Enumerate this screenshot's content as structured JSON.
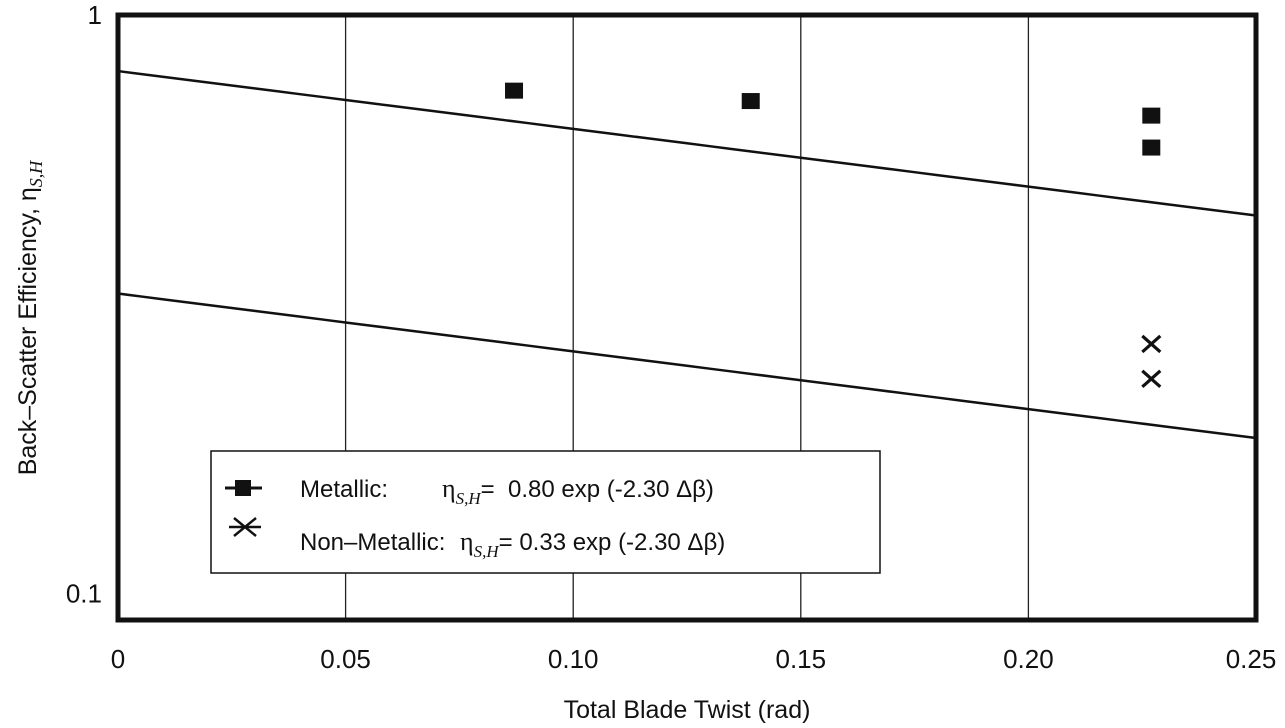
{
  "chart_data": {
    "type": "scatter",
    "xlabel": "Total Blade Twist (rad)",
    "ylabel": "Back–Scatter Efficiency, η",
    "ylabel_sub": "S,H",
    "xlim": [
      0,
      0.25
    ],
    "ylim": [
      0.09,
      1
    ],
    "y_scale": "log",
    "grid": true,
    "x_ticks": [
      {
        "value": 0,
        "label": "0"
      },
      {
        "value": 0.05,
        "label": "0.05"
      },
      {
        "value": 0.1,
        "label": "0.10"
      },
      {
        "value": 0.15,
        "label": "0.15"
      },
      {
        "value": 0.2,
        "label": "0.20"
      },
      {
        "value": 0.25,
        "label": "0.25"
      }
    ],
    "y_ticks": [
      {
        "value": 1,
        "label": "1"
      },
      {
        "value": 0.1,
        "label": "0.1"
      }
    ],
    "legend_position": "lower-left",
    "series": [
      {
        "name": "Metallic:",
        "marker": "square",
        "equation": {
          "eta": "η",
          "sub": "S,H",
          "rest": "=  0.80 exp (-2.30 Δβ)"
        },
        "fit": {
          "a": 0.8,
          "b": -2.3
        },
        "points": [
          {
            "x": 0.087,
            "y": 0.74
          },
          {
            "x": 0.139,
            "y": 0.71
          },
          {
            "x": 0.227,
            "y": 0.67
          },
          {
            "x": 0.227,
            "y": 0.59
          }
        ]
      },
      {
        "name": "Non–Metallic:",
        "marker": "x",
        "equation": {
          "eta": "η",
          "sub": "S,H",
          "rest": "= 0.33 exp (-2.30 Δβ)"
        },
        "fit": {
          "a": 0.33,
          "b": -2.3
        },
        "points": [
          {
            "x": 0.227,
            "y": 0.27
          },
          {
            "x": 0.227,
            "y": 0.235
          }
        ]
      }
    ]
  }
}
